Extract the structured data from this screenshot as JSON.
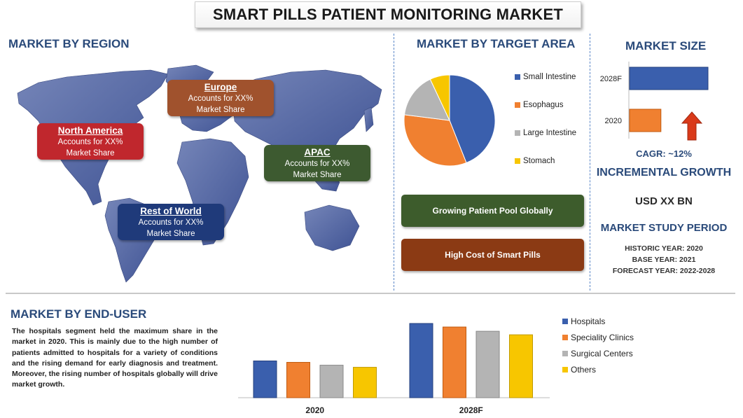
{
  "title": "SMART PILLS PATIENT MONITORING MARKET",
  "region_section": {
    "heading": "MARKET BY REGION",
    "regions": [
      {
        "name": "North America",
        "desc_line1": "Accounts for XX%",
        "desc_line2": "Market Share",
        "color": "#c0272d"
      },
      {
        "name": "Europe",
        "desc_line1": "Accounts for XX%",
        "desc_line2": "Market Share",
        "color": "#a0522d"
      },
      {
        "name": "APAC",
        "desc_line1": "Accounts for XX%",
        "desc_line2": "Market Share",
        "color": "#3d5a30"
      },
      {
        "name": "Rest of World",
        "desc_line1": "Accounts for XX%",
        "desc_line2": "Market Share",
        "color": "#1f3a7a"
      }
    ]
  },
  "target_section": {
    "heading": "MARKET BY TARGET AREA",
    "drivers": [
      {
        "label": "Growing Patient Pool Globally",
        "color": "#3d5c2c"
      },
      {
        "label": "High Cost of Smart Pills",
        "color": "#8b3a14"
      }
    ]
  },
  "size_section": {
    "heading": "MARKET SIZE",
    "cagr": "CAGR:  ~12%",
    "incremental_heading": "INCREMENTAL GROWTH",
    "incremental_value": "USD XX BN",
    "study_heading": "MARKET STUDY PERIOD",
    "historic": "HISTORIC YEAR: 2020",
    "base": "BASE YEAR: 2021",
    "forecast": "FORECAST YEAR: 2022-2028"
  },
  "enduser_section": {
    "heading": "MARKET BY END-USER",
    "paragraph": "The hospitals segment held the maximum share in the market in 2020. This is mainly due to the high number of patients admitted to hospitals for a variety of conditions and the rising demand for early diagnosis and treatment. Moreover, the rising number of hospitals globally will drive market growth."
  },
  "colors": {
    "blue": "#3a5fad",
    "orange": "#f08030",
    "gray": "#b4b4b4",
    "yellow": "#f7c600",
    "map": "#5b6fa8",
    "heading": "#2a4a7a"
  },
  "chart_data": [
    {
      "type": "pie",
      "title": "MARKET BY TARGET AREA",
      "categories": [
        "Small Intestine",
        "Esophagus",
        "Large Intestine",
        "Stomach"
      ],
      "values": [
        44,
        33,
        16,
        7
      ],
      "colors": [
        "#3a5fad",
        "#f08030",
        "#b4b4b4",
        "#f7c600"
      ],
      "legend": "right"
    },
    {
      "type": "bar",
      "orientation": "horizontal",
      "title": "MARKET SIZE",
      "categories": [
        "2028F",
        "2020"
      ],
      "values": [
        100,
        40
      ],
      "colors": [
        "#3a5fad",
        "#f08030"
      ]
    },
    {
      "type": "bar",
      "title": "MARKET BY END-USER",
      "categories": [
        "2020",
        "2028F"
      ],
      "series": [
        {
          "name": "Hospitals",
          "values": [
            52,
            105
          ],
          "color": "#3a5fad"
        },
        {
          "name": "Speciality Clinics",
          "values": [
            50,
            100
          ],
          "color": "#f08030"
        },
        {
          "name": "Surgical Centers",
          "values": [
            46,
            94
          ],
          "color": "#b4b4b4"
        },
        {
          "name": "Others",
          "values": [
            43,
            89
          ],
          "color": "#f7c600"
        }
      ],
      "legend": "right"
    }
  ]
}
